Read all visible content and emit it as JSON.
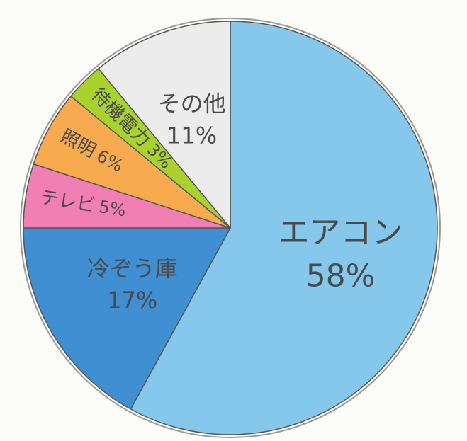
{
  "chart_data": {
    "type": "pie",
    "categories": [
      "エアコン",
      "冷ぞう庫",
      "テレビ",
      "照明",
      "待機電力",
      "その他"
    ],
    "values": [
      58,
      17,
      5,
      6,
      3,
      11
    ],
    "value_labels": [
      "58%",
      "17%",
      "5%",
      "6%",
      "3%",
      "11%"
    ],
    "colors": [
      "#86c8ec",
      "#3f8fd2",
      "#f27fb4",
      "#f7ab4e",
      "#a9d22c",
      "#ececec"
    ]
  }
}
